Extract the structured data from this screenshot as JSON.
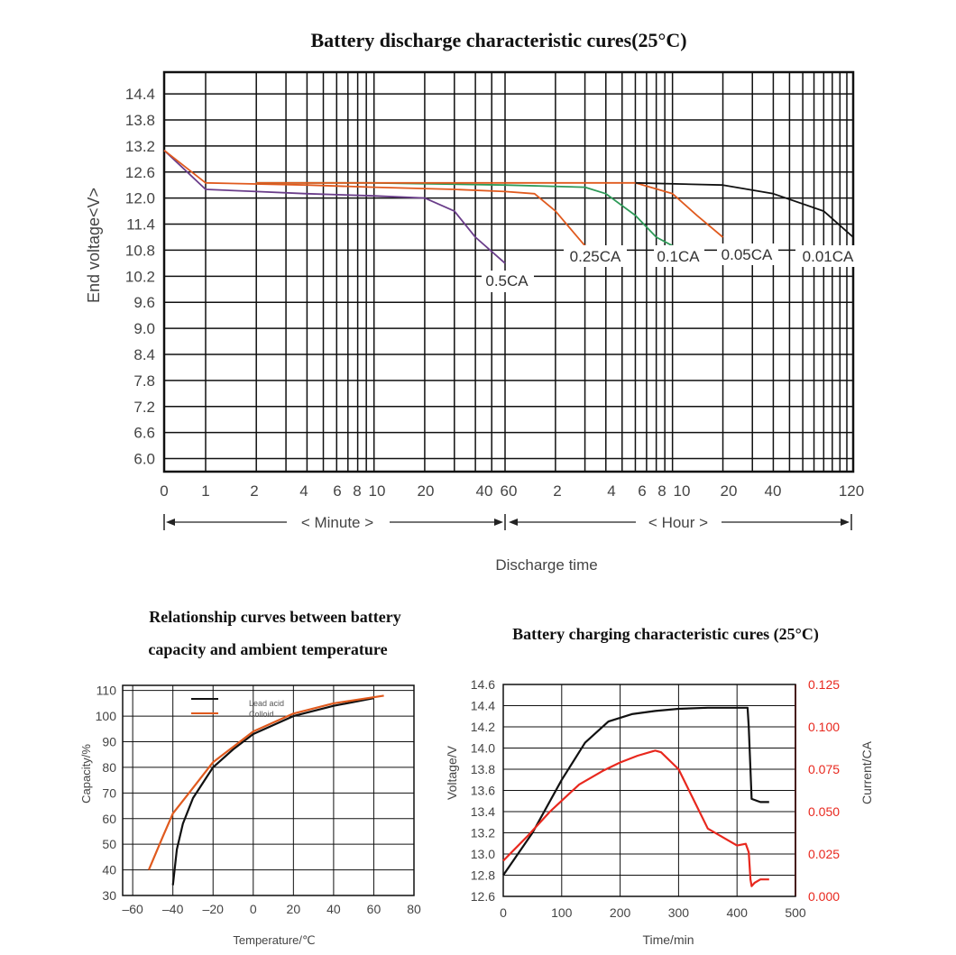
{
  "chart_data": [
    {
      "id": "discharge",
      "type": "line",
      "title": "Battery discharge characteristic cures(25°C)",
      "ylabel": "End voltage<V>",
      "xlabel": "Discharge time",
      "ylim": [
        5.7,
        14.9
      ],
      "y_ticks": [
        "14.4",
        "13.8",
        "13.2",
        "12.6",
        "12.0",
        "11.4",
        "10.8",
        "10.2",
        "9.6",
        "9.0",
        "8.4",
        "7.8",
        "7.2",
        "6.6",
        "6.0"
      ],
      "x_ticks": [
        "0",
        "1",
        "2",
        "4",
        "6",
        "8",
        "10",
        "20",
        "40",
        "60",
        "2",
        "4",
        "6",
        "8",
        "10",
        "20",
        "40",
        "120"
      ],
      "x_scale": "log (minutes, then hours)",
      "minute_label": "< Minute >",
      "hour_label": "< Hour >",
      "grid": true,
      "series": [
        {
          "name": "0.5CA",
          "color": "#6a3d8a",
          "points": [
            [
              "0",
              13.1
            ],
            [
              "1",
              12.2
            ],
            [
              "2",
              12.15
            ],
            [
              "4",
              12.1
            ],
            [
              "10",
              12.05
            ],
            [
              "20",
              12.0
            ],
            [
              "30",
              11.7
            ],
            [
              "40",
              11.1
            ],
            [
              "60",
              10.5
            ]
          ]
        },
        {
          "name": "0.25CA",
          "color": "#e05a1e",
          "points": [
            [
              "0",
              13.1
            ],
            [
              "1",
              12.35
            ],
            [
              "4",
              12.3
            ],
            [
              "10",
              12.25
            ],
            [
              "30",
              12.2
            ],
            [
              "60",
              12.15
            ],
            [
              "1.5h",
              12.1
            ],
            [
              "2h",
              11.7
            ],
            [
              "3h",
              10.9
            ]
          ]
        },
        {
          "name": "0.1CA",
          "color": "#2e9a58",
          "points": [
            [
              "2",
              12.35
            ],
            [
              "10",
              12.35
            ],
            [
              "60",
              12.3
            ],
            [
              "3h",
              12.25
            ],
            [
              "4h",
              12.1
            ],
            [
              "6h",
              11.6
            ],
            [
              "8h",
              11.1
            ],
            [
              "10h",
              10.9
            ]
          ]
        },
        {
          "name": "0.05CA",
          "color": "#e05a1e",
          "points": [
            [
              "2",
              12.35
            ],
            [
              "10",
              12.35
            ],
            [
              "60",
              12.35
            ],
            [
              "6h",
              12.35
            ],
            [
              "10h",
              12.1
            ],
            [
              "14h",
              11.6
            ],
            [
              "20h",
              11.1
            ]
          ]
        },
        {
          "name": "0.01CA",
          "color": "#111111",
          "points": [
            [
              "6h",
              12.35
            ],
            [
              "20h",
              12.3
            ],
            [
              "40h",
              12.1
            ],
            [
              "80h",
              11.7
            ],
            [
              "120h",
              11.1
            ]
          ]
        }
      ]
    },
    {
      "id": "capacity",
      "type": "line",
      "title_line1": "Relationship curves between battery",
      "title_line2": "capacity and ambient temperature",
      "xlabel": "Temperature/℃",
      "ylabel": "Capacity/%",
      "xlim": [
        -65,
        80
      ],
      "ylim": [
        30,
        112
      ],
      "x_ticks": [
        "–60",
        "–40",
        "–20",
        "0",
        "20",
        "40",
        "60",
        "80"
      ],
      "y_ticks": [
        "110",
        "100",
        "90",
        "80",
        "70",
        "60",
        "50",
        "40",
        "30"
      ],
      "legend": "top",
      "grid": true,
      "series": [
        {
          "name": "Lead acid",
          "color": "#111111",
          "x": [
            -40,
            -38,
            -35,
            -30,
            -20,
            -10,
            0,
            20,
            40,
            60
          ],
          "y": [
            34,
            48,
            58,
            68,
            80,
            87,
            93,
            100,
            104,
            107
          ]
        },
        {
          "name": "Colloid",
          "color": "#e05a1e",
          "x": [
            -52,
            -45,
            -40,
            -30,
            -20,
            -10,
            0,
            20,
            40,
            65
          ],
          "y": [
            40,
            53,
            62,
            72,
            82,
            88,
            94,
            101,
            105,
            108
          ]
        }
      ]
    },
    {
      "id": "charging",
      "type": "line",
      "title": "Battery charging characteristic cures (25°C)",
      "xlabel": "Time/min",
      "ylabel": "Voltage/V",
      "y2label": "Current/CA",
      "xlim": [
        0,
        500
      ],
      "ylim": [
        12.6,
        14.6
      ],
      "y2lim": [
        0.0,
        0.125
      ],
      "x_ticks": [
        "0",
        "100",
        "200",
        "300",
        "400",
        "500"
      ],
      "y_ticks": [
        "14.6",
        "14.4",
        "14.2",
        "14.0",
        "13.8",
        "13.6",
        "13.4",
        "13.2",
        "13.0",
        "12.8",
        "12.6"
      ],
      "y2_ticks": [
        "0.125",
        "0.100",
        "0.075",
        "0.050",
        "0.025",
        "0.000"
      ],
      "grid": true,
      "series": [
        {
          "name": "Voltage",
          "axis": "left",
          "color": "#111111",
          "x": [
            0,
            50,
            100,
            140,
            180,
            220,
            260,
            300,
            350,
            400,
            418,
            420,
            425,
            440,
            455
          ],
          "y": [
            12.8,
            13.2,
            13.7,
            14.05,
            14.25,
            14.32,
            14.35,
            14.37,
            14.38,
            14.38,
            14.38,
            14.2,
            13.52,
            13.49,
            13.49
          ]
        },
        {
          "name": "Current",
          "axis": "right",
          "color": "#e8281e",
          "x": [
            0,
            40,
            80,
            130,
            170,
            200,
            230,
            260,
            270,
            300,
            350,
            400,
            415,
            420,
            423,
            425,
            430,
            440,
            455
          ],
          "y": [
            0.021,
            0.035,
            0.05,
            0.066,
            0.074,
            0.079,
            0.083,
            0.086,
            0.085,
            0.075,
            0.04,
            0.03,
            0.031,
            0.026,
            0.01,
            0.006,
            0.008,
            0.01,
            0.01
          ]
        }
      ]
    }
  ]
}
